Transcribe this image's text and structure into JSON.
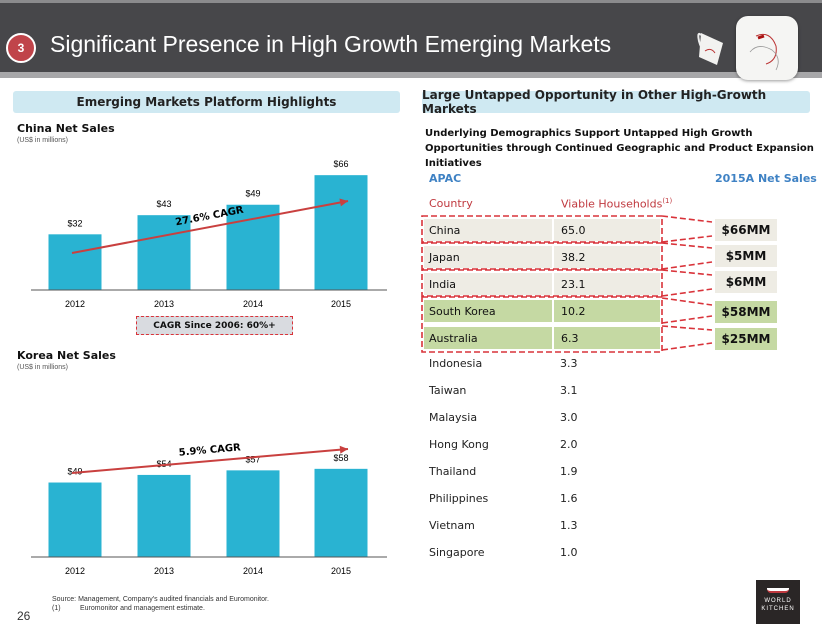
{
  "header": {
    "section_number": "3",
    "title": "Significant Presence in High Growth Emerging Markets"
  },
  "left_panel": {
    "section_title": "Emerging Markets Platform Highlights",
    "china": {
      "title": "China Net Sales",
      "subtitle": "(US$ in millions)",
      "cagr_label": "27.6% CAGR",
      "cagr_box": "CAGR Since 2006: 60%+"
    },
    "korea": {
      "title": "Korea Net Sales",
      "subtitle": "(US$ in millions)",
      "cagr_label": "5.9% CAGR"
    }
  },
  "right_panel": {
    "section_title": "Large Untapped Opportunity in Other High-Growth Markets",
    "subheading": "Underlying Demographics Support Untapped High Growth Opportunities through Continued Geographic and Product Expansion Initiatives",
    "region_label": "APAC",
    "net_sales_header": "2015A Net Sales",
    "col_country": "Country",
    "col_households": "Viable Households",
    "col_households_sup": "(1)",
    "highlighted_rows": [
      {
        "country": "China",
        "households": "65.0",
        "net_sales": "$66MM",
        "style": "gray"
      },
      {
        "country": "Japan",
        "households": "38.2",
        "net_sales": "$5MM",
        "style": "gray"
      },
      {
        "country": "India",
        "households": "23.1",
        "net_sales": "$6MM",
        "style": "gray"
      },
      {
        "country": "South Korea",
        "households": "10.2",
        "net_sales": "$58MM",
        "style": "green"
      },
      {
        "country": "Australia",
        "households": "6.3",
        "net_sales": "$25MM",
        "style": "green"
      }
    ],
    "other_rows": [
      {
        "country": "Indonesia",
        "households": "3.3"
      },
      {
        "country": "Taiwan",
        "households": "3.1"
      },
      {
        "country": "Malaysia",
        "households": "3.0"
      },
      {
        "country": "Hong Kong",
        "households": "2.0"
      },
      {
        "country": "Thailand",
        "households": "1.9"
      },
      {
        "country": "Philippines",
        "households": "1.6"
      },
      {
        "country": "Vietnam",
        "households": "1.3"
      },
      {
        "country": "Singapore",
        "households": "1.0"
      }
    ]
  },
  "footer": {
    "source": "Source: Management, Company's audited financials and Euromonitor.",
    "note_marker": "(1)",
    "note": "Euromonitor and management estimate.",
    "page_number": "26",
    "logo_line1": "WORLD",
    "logo_line2": "KITCHEN"
  },
  "colors": {
    "bar": "#29b3d2",
    "accent_red": "#c0393f",
    "apac_blue": "#3f82c4",
    "highlight_gray": "#eeece4",
    "highlight_green": "#c5d9a3"
  },
  "chart_data": [
    {
      "type": "bar",
      "title": "China Net Sales",
      "subtitle": "(US$ in millions)",
      "categories": [
        "2012",
        "2013",
        "2014",
        "2015"
      ],
      "values": [
        32,
        43,
        49,
        66
      ],
      "labels": [
        "$32",
        "$43",
        "$49",
        "$66"
      ],
      "annotation": "27.6% CAGR",
      "xlabel": "",
      "ylabel": "",
      "ylim": [
        0,
        70
      ]
    },
    {
      "type": "bar",
      "title": "Korea Net Sales",
      "subtitle": "(US$ in millions)",
      "categories": [
        "2012",
        "2013",
        "2014",
        "2015"
      ],
      "values": [
        49,
        54,
        57,
        58
      ],
      "labels": [
        "$49",
        "$54",
        "$57",
        "$58"
      ],
      "annotation": "5.9% CAGR",
      "xlabel": "",
      "ylabel": "",
      "ylim": [
        0,
        70
      ]
    }
  ]
}
